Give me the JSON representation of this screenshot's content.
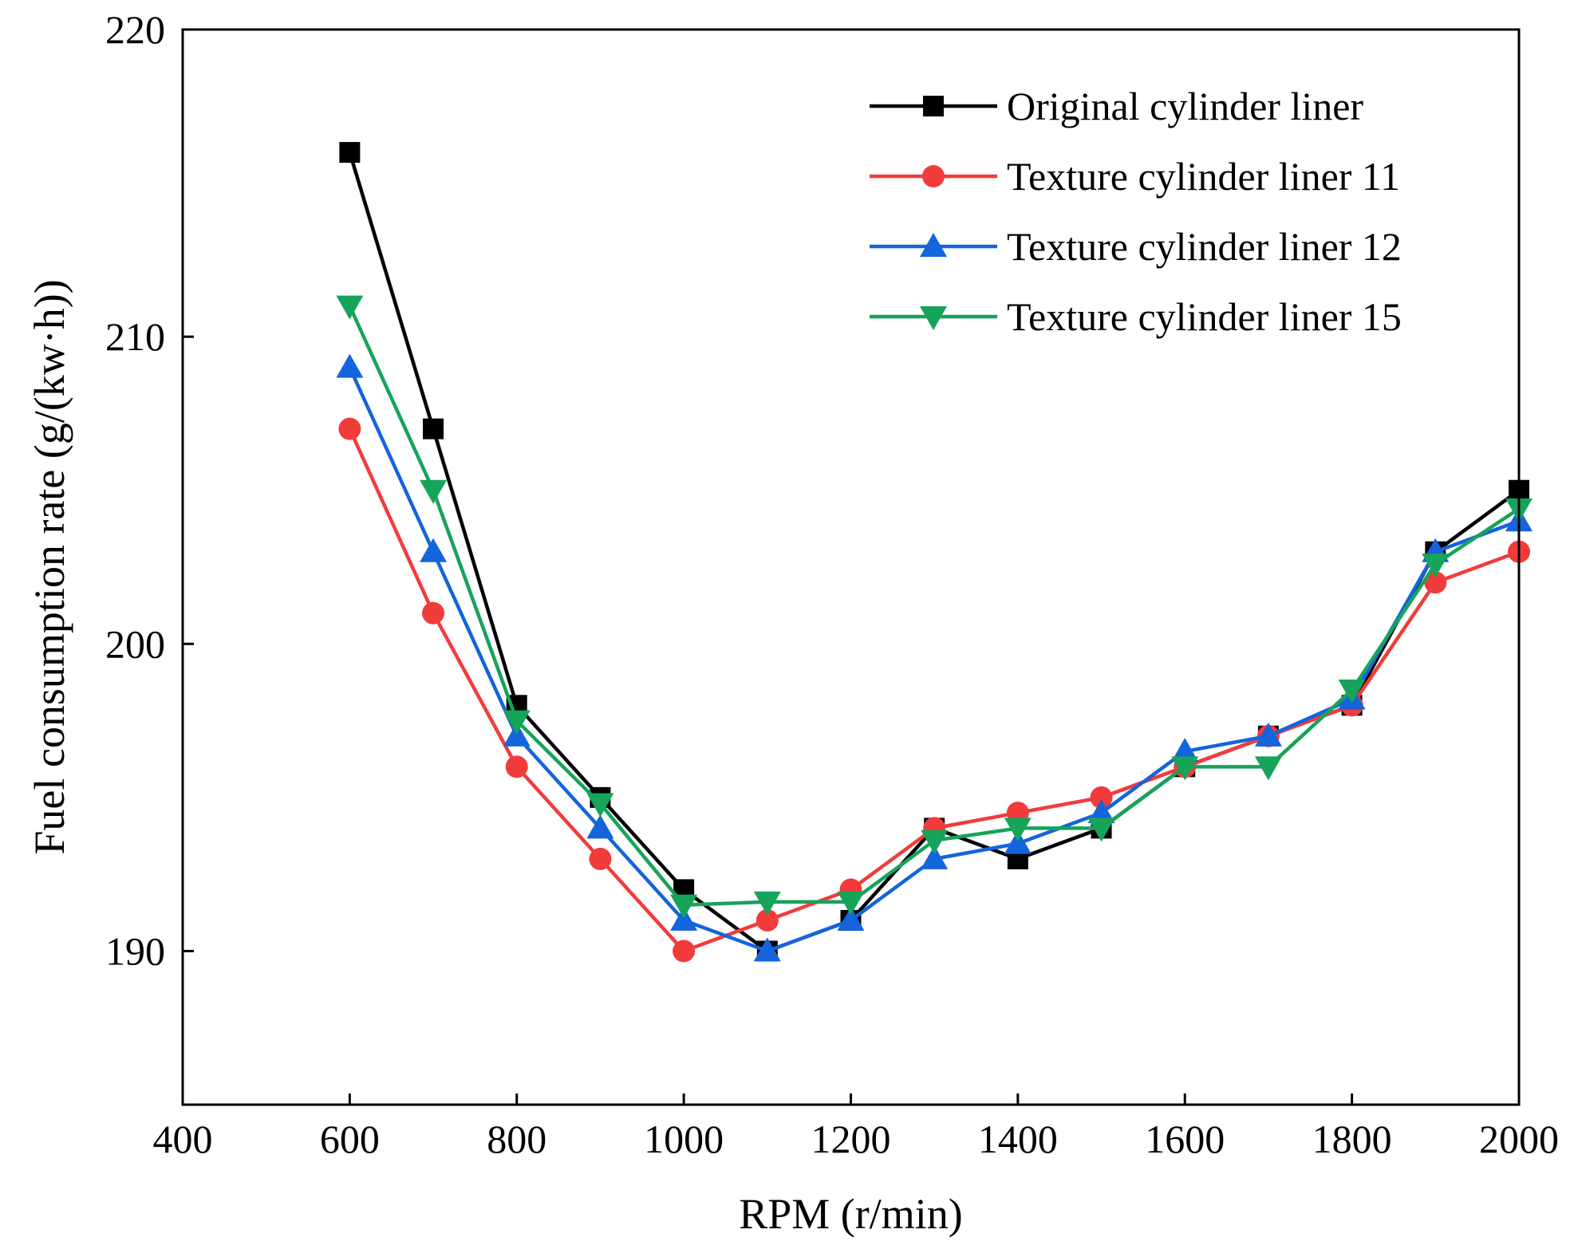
{
  "chart_data": {
    "type": "line",
    "xlabel": "RPM (r/min)",
    "ylabel": "Fuel consumption rate (g/(kw·h))",
    "xlim": [
      400,
      2000
    ],
    "ylim": [
      185,
      220
    ],
    "xticks": [
      400,
      600,
      800,
      1000,
      1200,
      1400,
      1600,
      1800,
      2000
    ],
    "yticks": [
      190,
      200,
      210,
      220
    ],
    "grid": false,
    "legend_position": "top-right",
    "x": [
      600,
      700,
      800,
      900,
      1000,
      1100,
      1200,
      1300,
      1400,
      1500,
      1600,
      1700,
      1800,
      1900,
      2000
    ],
    "series": [
      {
        "name": "Original cylinder liner",
        "color": "#000000",
        "marker": "square",
        "values": [
          216,
          207,
          198,
          195,
          192,
          190,
          191,
          194,
          193,
          194,
          196,
          197,
          198,
          203,
          205
        ]
      },
      {
        "name": "Texture cylinder liner 11",
        "color": "#f23b3b",
        "marker": "circle",
        "values": [
          207,
          201,
          196,
          193,
          190,
          191,
          192,
          194,
          194.5,
          195,
          196,
          197,
          198,
          202,
          203
        ]
      },
      {
        "name": "Texture cylinder liner 12",
        "color": "#1464dc",
        "marker": "triangle-up",
        "values": [
          209,
          203,
          197,
          194,
          191,
          190,
          191,
          193,
          193.5,
          194.5,
          196.5,
          197,
          198.2,
          203,
          204
        ]
      },
      {
        "name": "Texture cylinder liner 15",
        "color": "#16a35a",
        "marker": "triangle-down",
        "values": [
          211,
          205,
          197.5,
          194.8,
          191.5,
          191.6,
          191.6,
          193.6,
          194,
          194,
          196,
          196,
          198.5,
          202.6,
          204.4
        ]
      }
    ]
  }
}
